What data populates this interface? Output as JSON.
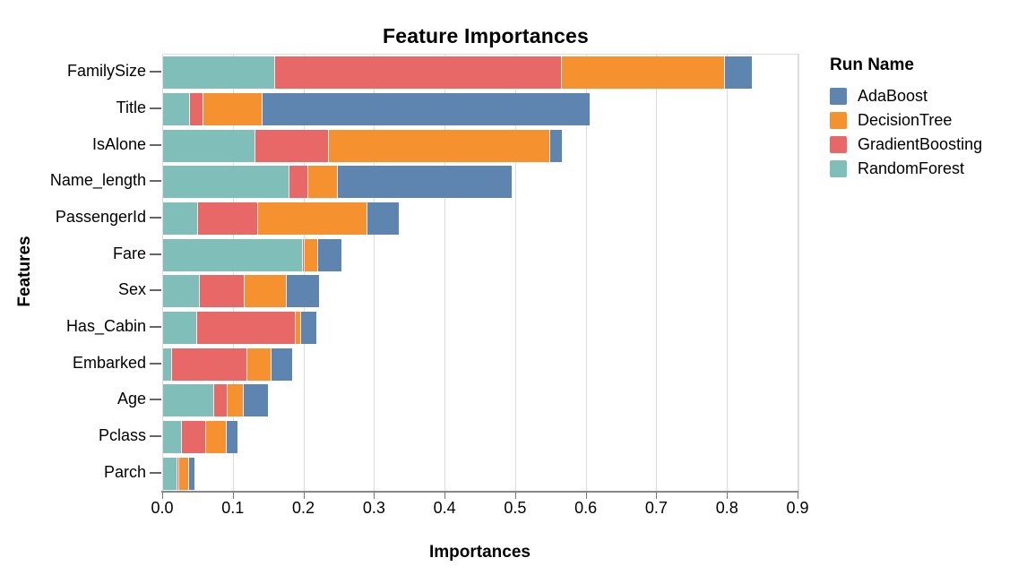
{
  "chart_data": {
    "type": "bar",
    "orientation": "horizontal",
    "stacked": true,
    "title": "Feature Importances",
    "xlabel": "Importances",
    "ylabel": "Features",
    "xlim": [
      0.0,
      0.9
    ],
    "x_ticks": [
      "0.0",
      "0.1",
      "0.2",
      "0.3",
      "0.4",
      "0.5",
      "0.6",
      "0.7",
      "0.8",
      "0.9"
    ],
    "grid": true,
    "categories": [
      "FamilySize",
      "Title",
      "IsAlone",
      "Name_length",
      "PassengerId",
      "Fare",
      "Sex",
      "Has_Cabin",
      "Embarked",
      "Age",
      "Pclass",
      "Parch"
    ],
    "series": [
      {
        "name": "RandomForest",
        "color": "#80beba",
        "values": [
          0.158,
          0.037,
          0.13,
          0.178,
          0.048,
          0.197,
          0.051,
          0.047,
          0.011,
          0.071,
          0.026,
          0.019
        ]
      },
      {
        "name": "GradientBoosting",
        "color": "#e76867",
        "values": [
          0.406,
          0.019,
          0.104,
          0.026,
          0.085,
          0.002,
          0.063,
          0.139,
          0.107,
          0.019,
          0.034,
          0.003
        ]
      },
      {
        "name": "DecisionTree",
        "color": "#f6912f",
        "values": [
          0.231,
          0.084,
          0.313,
          0.042,
          0.155,
          0.019,
          0.06,
          0.008,
          0.034,
          0.023,
          0.029,
          0.013
        ]
      },
      {
        "name": "AdaBoost",
        "color": "#5d85b0",
        "values": [
          0.039,
          0.464,
          0.018,
          0.248,
          0.046,
          0.035,
          0.047,
          0.023,
          0.031,
          0.035,
          0.016,
          0.01
        ]
      }
    ],
    "legend": {
      "title": "Run Name",
      "position": "right",
      "entries": [
        {
          "label": "AdaBoost",
          "color": "#5d85b0"
        },
        {
          "label": "DecisionTree",
          "color": "#f6912f"
        },
        {
          "label": "GradientBoosting",
          "color": "#e76867"
        },
        {
          "label": "RandomForest",
          "color": "#80beba"
        }
      ]
    },
    "style": {
      "grid_color": "#dddddd",
      "plot_border_color": "#dddddd",
      "axis_domain_color": "#888888",
      "tick_color": "#777777",
      "text_color": "#000000",
      "background": "#ffffff"
    }
  }
}
